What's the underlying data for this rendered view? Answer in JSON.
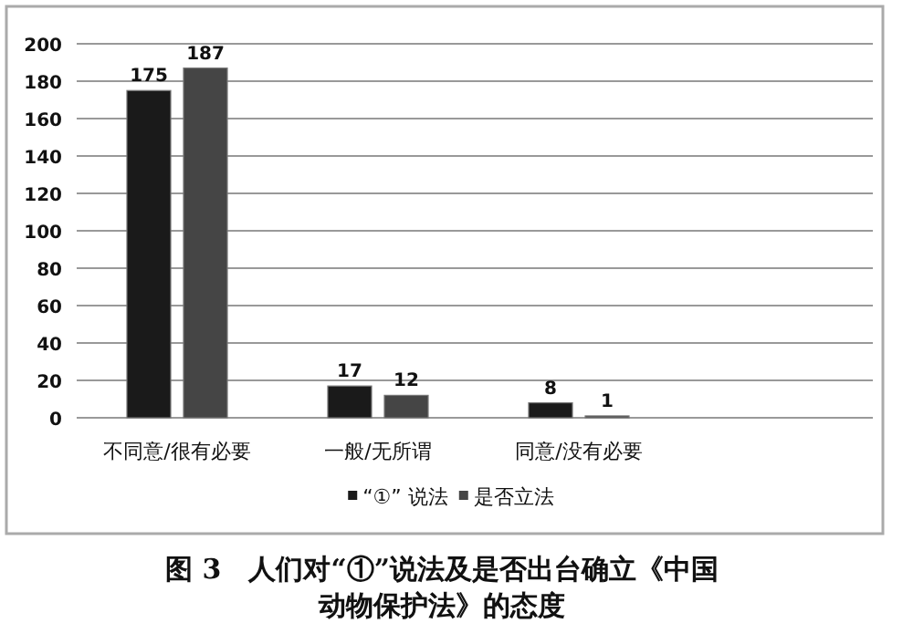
{
  "chart_data": {
    "type": "bar",
    "title": "图 3　人们对“①”说法及是否出台确立《中国动物保护法》的态度",
    "categories": [
      "不同意/很有必要",
      "一般/无所谓",
      "同意/没有必要",
      null
    ],
    "series": [
      {
        "name": "“①” 说法",
        "color": "#1a1a1a",
        "values": [
          175,
          17,
          8,
          null
        ]
      },
      {
        "name": "是否立法",
        "color": "#454545",
        "values": [
          187,
          12,
          1,
          null
        ]
      }
    ],
    "ylim": [
      0,
      200
    ],
    "yticks": [
      0,
      20,
      40,
      60,
      80,
      100,
      120,
      140,
      160,
      180,
      200
    ],
    "grid": "y",
    "legend": "bottom",
    "data_labels": true
  }
}
